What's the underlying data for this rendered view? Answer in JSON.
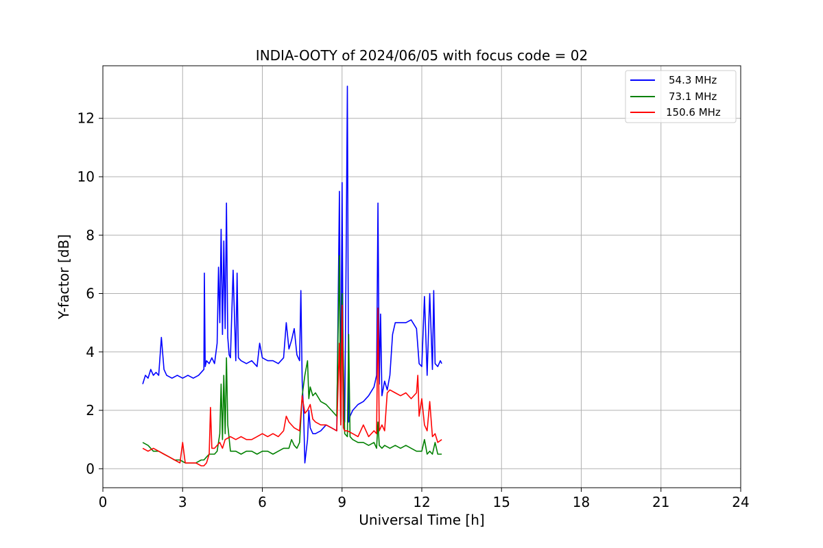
{
  "chart_data": {
    "type": "line",
    "title": "INDIA-OOTY of 2024/06/05 with focus code = 02",
    "xlabel": "Universal Time [h]",
    "ylabel": "Y-factor [dB]",
    "xlim": [
      0,
      24
    ],
    "ylim": [
      -0.65,
      13.8
    ],
    "xticks": [
      0,
      3,
      6,
      9,
      12,
      15,
      18,
      21,
      24
    ],
    "yticks": [
      0,
      2,
      4,
      6,
      8,
      10,
      12
    ],
    "grid": true,
    "legend_position": "top-right",
    "series": [
      {
        "name": "54.3 MHz",
        "color": "#0000ff",
        "x": [
          1.5,
          1.6,
          1.7,
          1.8,
          1.9,
          2.0,
          2.1,
          2.2,
          2.3,
          2.4,
          2.6,
          2.8,
          3.0,
          3.2,
          3.4,
          3.6,
          3.8,
          3.82,
          3.85,
          3.9,
          4.0,
          4.1,
          4.2,
          4.3,
          4.35,
          4.4,
          4.45,
          4.5,
          4.55,
          4.6,
          4.65,
          4.7,
          4.75,
          4.8,
          4.9,
          5.0,
          5.05,
          5.1,
          5.2,
          5.4,
          5.6,
          5.8,
          5.9,
          6.0,
          6.2,
          6.4,
          6.6,
          6.8,
          6.9,
          7.0,
          7.1,
          7.2,
          7.3,
          7.4,
          7.45,
          7.5,
          7.55,
          7.6,
          7.7,
          7.75,
          7.8,
          7.9,
          8.0,
          8.2,
          8.4,
          8.6,
          8.8,
          8.9,
          8.95,
          9.0,
          9.05,
          9.1,
          9.15,
          9.2,
          9.25,
          9.3,
          9.4,
          9.6,
          9.8,
          10.0,
          10.2,
          10.3,
          10.35,
          10.4,
          10.45,
          10.5,
          10.6,
          10.7,
          10.8,
          10.9,
          11.0,
          11.2,
          11.4,
          11.6,
          11.8,
          11.9,
          12.0,
          12.1,
          12.2,
          12.3,
          12.4,
          12.45,
          12.5,
          12.6,
          12.7,
          12.75
        ],
        "y": [
          2.9,
          3.2,
          3.1,
          3.4,
          3.2,
          3.3,
          3.2,
          4.5,
          3.4,
          3.2,
          3.1,
          3.2,
          3.1,
          3.2,
          3.1,
          3.2,
          3.4,
          6.7,
          3.5,
          3.7,
          3.6,
          3.8,
          3.6,
          4.3,
          6.9,
          5.0,
          8.2,
          4.6,
          7.8,
          4.8,
          9.1,
          4.5,
          3.9,
          3.8,
          6.8,
          3.7,
          6.7,
          3.8,
          3.7,
          3.6,
          3.7,
          3.5,
          4.3,
          3.8,
          3.7,
          3.7,
          3.6,
          3.8,
          5.0,
          4.1,
          4.4,
          4.8,
          3.9,
          3.7,
          6.1,
          3.0,
          2.0,
          0.2,
          1.0,
          2.0,
          1.4,
          1.2,
          1.2,
          1.3,
          1.5,
          1.4,
          1.3,
          9.5,
          1.8,
          9.8,
          1.7,
          1.6,
          7.0,
          13.1,
          1.6,
          1.8,
          2.0,
          2.2,
          2.3,
          2.5,
          2.8,
          3.2,
          9.1,
          2.9,
          5.3,
          2.5,
          3.0,
          2.7,
          3.2,
          4.6,
          5.0,
          5.0,
          5.0,
          5.1,
          4.8,
          3.6,
          3.5,
          5.9,
          3.2,
          6.0,
          3.4,
          6.1,
          3.6,
          3.5,
          3.7,
          3.6
        ]
      },
      {
        "name": "73.1 MHz",
        "color": "#008000",
        "x": [
          1.5,
          1.7,
          1.9,
          2.1,
          2.3,
          2.5,
          2.7,
          2.9,
          3.1,
          3.3,
          3.5,
          3.7,
          3.8,
          3.9,
          4.0,
          4.2,
          4.3,
          4.4,
          4.45,
          4.5,
          4.55,
          4.6,
          4.65,
          4.7,
          4.8,
          5.0,
          5.2,
          5.4,
          5.6,
          5.8,
          6.0,
          6.2,
          6.4,
          6.6,
          6.8,
          7.0,
          7.1,
          7.2,
          7.3,
          7.4,
          7.5,
          7.6,
          7.7,
          7.75,
          7.8,
          7.9,
          8.0,
          8.2,
          8.4,
          8.6,
          8.8,
          8.9,
          8.95,
          9.0,
          9.1,
          9.2,
          9.25,
          9.3,
          9.4,
          9.6,
          9.8,
          10.0,
          10.2,
          10.3,
          10.35,
          10.4,
          10.5,
          10.6,
          10.8,
          11.0,
          11.2,
          11.4,
          11.6,
          11.8,
          12.0,
          12.1,
          12.2,
          12.3,
          12.4,
          12.5,
          12.6,
          12.75
        ],
        "y": [
          0.9,
          0.8,
          0.6,
          0.6,
          0.5,
          0.4,
          0.3,
          0.3,
          0.2,
          0.2,
          0.2,
          0.3,
          0.3,
          0.4,
          0.5,
          0.5,
          0.6,
          1.2,
          2.9,
          1.0,
          3.2,
          1.2,
          3.8,
          1.5,
          0.6,
          0.6,
          0.5,
          0.6,
          0.6,
          0.5,
          0.6,
          0.6,
          0.5,
          0.6,
          0.7,
          0.7,
          1.0,
          0.8,
          0.7,
          0.9,
          2.5,
          3.2,
          3.7,
          2.4,
          2.8,
          2.5,
          2.6,
          2.3,
          2.2,
          2.0,
          1.8,
          7.3,
          1.6,
          6.0,
          1.2,
          1.1,
          4.6,
          1.1,
          1.0,
          0.9,
          0.9,
          0.8,
          0.9,
          0.7,
          1.6,
          0.8,
          0.7,
          0.8,
          0.7,
          0.8,
          0.7,
          0.8,
          0.7,
          0.6,
          0.6,
          1.0,
          0.5,
          0.6,
          0.5,
          0.9,
          0.5,
          0.5
        ]
      },
      {
        "name": "150.6 MHz",
        "color": "#ff0000",
        "x": [
          1.5,
          1.7,
          1.9,
          2.1,
          2.3,
          2.5,
          2.7,
          2.9,
          3.0,
          3.1,
          3.3,
          3.5,
          3.7,
          3.8,
          3.9,
          4.0,
          4.05,
          4.1,
          4.2,
          4.4,
          4.5,
          4.6,
          4.8,
          5.0,
          5.2,
          5.4,
          5.6,
          5.8,
          6.0,
          6.2,
          6.4,
          6.6,
          6.8,
          6.9,
          7.0,
          7.2,
          7.4,
          7.5,
          7.6,
          7.7,
          7.8,
          7.9,
          8.0,
          8.2,
          8.4,
          8.6,
          8.8,
          8.9,
          8.95,
          9.0,
          9.05,
          9.1,
          9.2,
          9.4,
          9.6,
          9.8,
          10.0,
          10.2,
          10.3,
          10.35,
          10.4,
          10.5,
          10.6,
          10.7,
          10.8,
          11.0,
          11.2,
          11.4,
          11.6,
          11.8,
          11.85,
          11.9,
          12.0,
          12.1,
          12.2,
          12.3,
          12.4,
          12.5,
          12.6,
          12.75
        ],
        "y": [
          0.7,
          0.6,
          0.7,
          0.6,
          0.5,
          0.4,
          0.3,
          0.2,
          0.9,
          0.2,
          0.2,
          0.2,
          0.1,
          0.1,
          0.2,
          0.5,
          2.1,
          0.7,
          0.7,
          0.9,
          0.7,
          1.0,
          1.1,
          1.0,
          1.1,
          1.0,
          1.0,
          1.1,
          1.2,
          1.1,
          1.2,
          1.1,
          1.3,
          1.8,
          1.6,
          1.4,
          1.3,
          2.5,
          1.9,
          2.0,
          2.2,
          1.7,
          1.6,
          1.5,
          1.5,
          1.4,
          1.3,
          4.3,
          1.5,
          5.6,
          1.4,
          1.3,
          1.3,
          1.2,
          1.1,
          1.5,
          1.1,
          1.3,
          1.2,
          5.5,
          1.3,
          1.5,
          1.3,
          2.6,
          2.7,
          2.6,
          2.5,
          2.6,
          2.4,
          2.6,
          3.2,
          1.8,
          2.4,
          1.5,
          1.3,
          2.3,
          1.1,
          1.2,
          0.9,
          1.0
        ]
      }
    ]
  }
}
